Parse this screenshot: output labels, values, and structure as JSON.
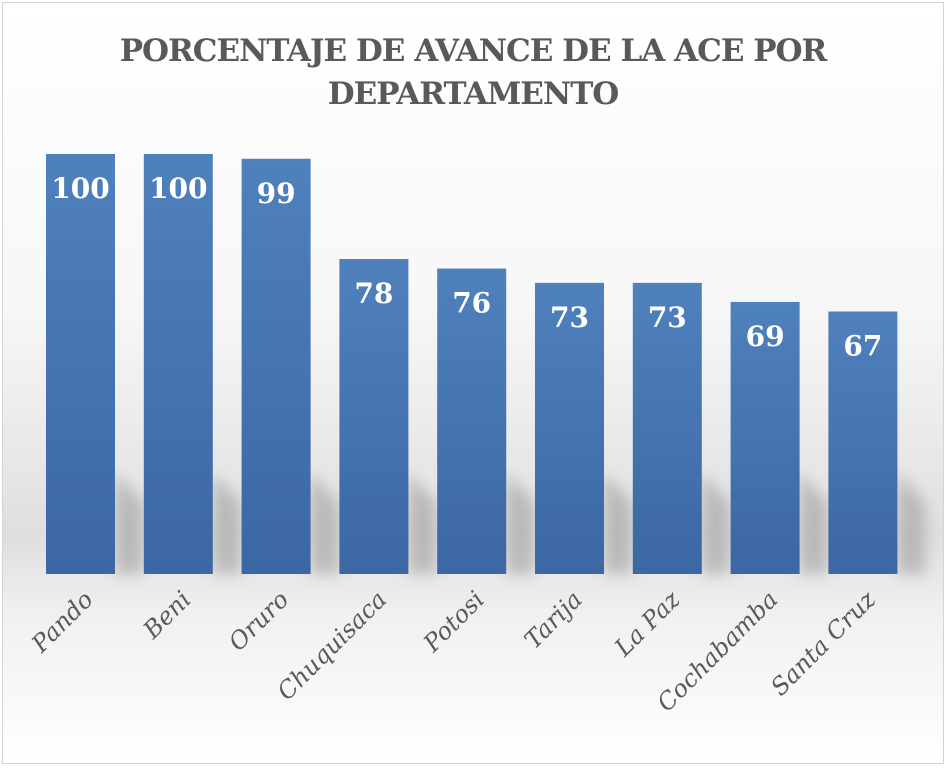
{
  "chart_data": {
    "type": "bar",
    "title": "PORCENTAJE DE AVANCE DE LA ACE POR DEPARTAMENTO",
    "title_lines": [
      "PORCENTAJE DE AVANCE DE LA ACE POR",
      "DEPARTAMENTO"
    ],
    "categories": [
      "Pando",
      "Beni",
      "Oruro",
      "Chuquisaca",
      "Potosi",
      "Tarija",
      "La Paz",
      "Cochabamba",
      "Santa Cruz"
    ],
    "values": [
      100,
      100,
      99,
      78,
      76,
      73,
      73,
      69,
      67
    ],
    "xlabel": "",
    "ylabel": "",
    "ylim": [
      12,
      100
    ],
    "grid": false,
    "legend": "none",
    "bar_color": "#4a7ab8"
  }
}
